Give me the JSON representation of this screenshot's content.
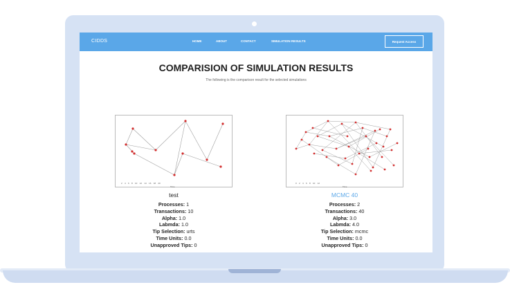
{
  "navbar": {
    "brand": "CIDDS",
    "links": [
      "HOME",
      "ABOUT",
      "CONTACT",
      "SIMULATION RESULTS"
    ],
    "request_access": "Request Access"
  },
  "page": {
    "title": "COMPARISION OF SIMULATION RESULTS",
    "subtitle": "The following is the comparison result for the selected simulations"
  },
  "simulations": [
    {
      "name": "test",
      "x_ticks": "2    4    6    8    10    12    14    16    18    20",
      "x_label": "Time",
      "fields": [
        {
          "label": "Processes:",
          "value": "1"
        },
        {
          "label": "Transactions:",
          "value": "10"
        },
        {
          "label": "Alpha:",
          "value": "1.0"
        },
        {
          "label": "Labmda:",
          "value": "1.0"
        },
        {
          "label": "Tip Selection:",
          "value": "urts"
        },
        {
          "label": "Time Units:",
          "value": "0.0"
        },
        {
          "label": "Unapproved Tips:",
          "value": "0"
        }
      ]
    },
    {
      "name": "MCMC 40",
      "x_ticks": "0    2    4    6    8    10    12",
      "x_label": "Time",
      "fields": [
        {
          "label": "Processes:",
          "value": "2"
        },
        {
          "label": "Transactions:",
          "value": "40"
        },
        {
          "label": "Alpha:",
          "value": "3.0"
        },
        {
          "label": "Labmda:",
          "value": "4.0"
        },
        {
          "label": "Tip Selection:",
          "value": "mcmc"
        },
        {
          "label": "Time Units:",
          "value": "0.0"
        },
        {
          "label": "Unapproved Tips:",
          "value": "0"
        }
      ]
    }
  ],
  "colors": {
    "accent": "#5aa7e8",
    "node": "#d32f2f",
    "edge": "#9e9e9e",
    "sim_name_2": "#5aa7e8"
  }
}
